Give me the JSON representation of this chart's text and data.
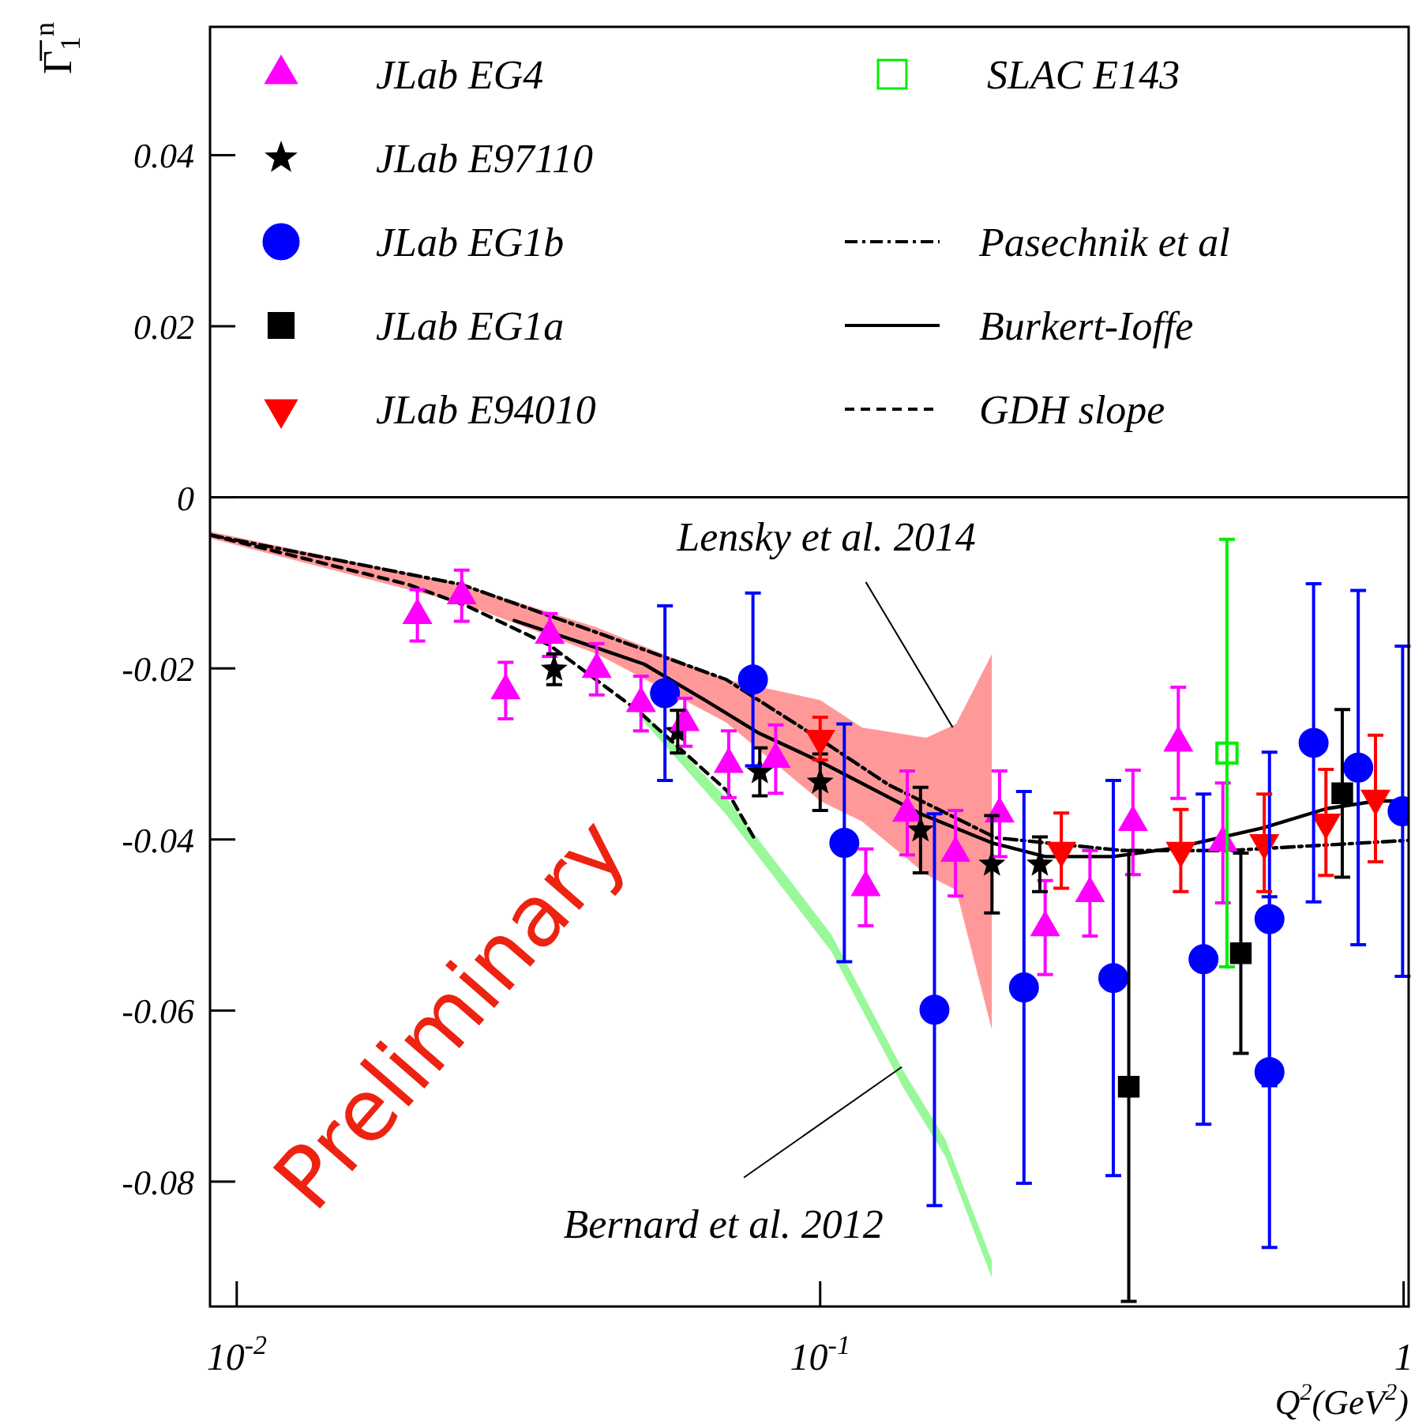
{
  "chart_data": {
    "type": "scatter",
    "xlabel": "Q$^{2}$(GeV$^{2}$)",
    "ylabel": "Γ̅$_{1}$$^{n}$",
    "log": "x",
    "legend": "top",
    "xlim": [
      0.009,
      1.02
    ],
    "ylim": [
      -0.0946,
      0.055
    ],
    "xticks": [
      {
        "value": 0.01,
        "label": "10$^{-2}$"
      },
      {
        "value": 0.1,
        "label": "10$^{-1}$"
      },
      1
    ],
    "yticks": [
      -0.08,
      -0.06,
      -0.04,
      -0.02,
      0,
      0.02,
      0.04
    ],
    "ref_lines": [
      {
        "axis": "y",
        "value": 0,
        "color": "#000000",
        "line_style": "solid"
      }
    ],
    "annotations": [
      {
        "text": "Lensky et al. 2014",
        "x": 0.1687,
        "y": -0.0269
      },
      {
        "text": "Bernard et al. 2012",
        "x": 0.138,
        "y": -0.0666
      },
      "Preliminary"
    ],
    "series": [
      {
        "name": "JLab EG4",
        "type": "scatter",
        "marker": "triangle",
        "color": "#ff00ff",
        "x": [
          0.0204,
          0.0243,
          0.0289,
          0.0344,
          0.0414,
          0.0493,
          0.0586,
          0.0697,
          0.0839,
          0.1197,
          0.141,
          0.1706,
          0.203,
          0.243,
          0.29,
          0.3436,
          0.411,
          0.49
        ],
        "values": [
          -0.0138,
          -0.0115,
          -0.0226,
          -0.0161,
          -0.0201,
          -0.0241,
          -0.0263,
          -0.0312,
          -0.0306,
          -0.0456,
          -0.0369,
          -0.0416,
          -0.037,
          -0.0503,
          -0.0463,
          -0.038,
          -0.0287,
          -0.0404
        ],
        "errors": [
          0.003,
          0.003,
          0.0033,
          0.0025,
          0.003,
          0.0032,
          0.0028,
          0.0039,
          0.004,
          0.0045,
          0.0049,
          0.005,
          0.005,
          0.0055,
          0.005,
          0.0061,
          0.0065,
          0.007
        ]
      },
      {
        "name": "JLab E97110",
        "type": "scatter",
        "marker": "star",
        "color": "#000000",
        "x": [
          0.035,
          0.057,
          0.0788,
          0.1,
          0.1486,
          0.197,
          0.238
        ],
        "values": [
          -0.0201,
          -0.0274,
          -0.0321,
          -0.0333,
          -0.0389,
          -0.0429,
          -0.0429
        ],
        "errors": [
          0.0018,
          0.0025,
          0.0028,
          0.0033,
          0.005,
          0.0057,
          0.0032
        ]
      },
      {
        "name": "JLab EG1b",
        "type": "scatter",
        "marker": "circle",
        "color": "#0000ff",
        "x": [
          0.0542,
          0.0767,
          0.11,
          0.157,
          0.2235,
          0.318,
          0.454,
          0.589,
          0.589,
          0.701,
          0.836,
          0.996
        ],
        "values": [
          -0.0229,
          -0.0213,
          -0.0404,
          -0.0599,
          -0.0573,
          -0.0562,
          -0.054,
          -0.0493,
          -0.0672,
          -0.0287,
          -0.0316,
          -0.0367
        ],
        "errors": [
          0.0102,
          0.0101,
          0.0139,
          0.0229,
          0.0229,
          0.0231,
          0.0193,
          0.0195,
          0.0205,
          0.0186,
          0.0207,
          0.0193
        ]
      },
      {
        "name": "JLab EG1a",
        "type": "scatter",
        "marker": "square",
        "color": "#000000",
        "x": [
          0.338,
          0.526,
          0.785
        ],
        "values": [
          -0.0689,
          -0.0533,
          -0.0346
        ],
        "errors": [
          [
            -0.094,
            -0.0413
          ],
          0.0117,
          0.0098
        ]
      },
      {
        "name": "JLab E94010",
        "type": "scatter",
        "marker": "triangle-down",
        "color": "#ff0000",
        "x": [
          0.1,
          0.259,
          0.415,
          0.577,
          0.736,
          0.895
        ],
        "values": [
          -0.0282,
          -0.0413,
          -0.0413,
          -0.0404,
          -0.038,
          -0.0352
        ],
        "errors": [
          0.0025,
          0.0044,
          0.0048,
          0.0057,
          0.0062,
          0.0074
        ]
      },
      {
        "name": "SLAC E143",
        "type": "scatter",
        "marker": "square-open",
        "color": "#00ee00",
        "x": [
          0.498
        ],
        "values": [
          -0.0299
        ],
        "errors": [
          0.025
        ]
      },
      {
        "name": "Pasechnik et al",
        "type": "line",
        "line_style": "dashdot",
        "color": "#000000",
        "x": [
          0.009,
          0.0243,
          0.0414,
          0.069,
          0.1,
          0.131,
          0.2,
          0.33,
          0.5,
          1.02
        ],
        "values": [
          -0.0044,
          -0.0102,
          -0.0158,
          -0.0213,
          -0.0283,
          -0.0336,
          -0.0398,
          -0.0413,
          -0.0413,
          -0.0401
        ]
      },
      {
        "name": "Burkert-Ioffe",
        "type": "line",
        "line_style": "solid",
        "color": "#000000",
        "x": [
          0.0299,
          0.0414,
          0.0499,
          0.0638,
          0.0782,
          0.1,
          0.1486,
          0.197,
          0.243,
          0.318,
          0.405,
          0.577,
          0.737,
          0.9,
          1.02
        ],
        "values": [
          -0.0144,
          -0.0176,
          -0.0195,
          -0.0238,
          -0.0275,
          -0.0309,
          -0.037,
          -0.0404,
          -0.042,
          -0.042,
          -0.041,
          -0.0386,
          -0.0364,
          -0.0355,
          -0.0355
        ]
      },
      {
        "name": "GDH slope",
        "type": "line",
        "line_style": "dashed",
        "color": "#000000",
        "x": [
          0.009,
          0.0197,
          0.0248,
          0.0344,
          0.0488,
          0.0692,
          0.077
        ],
        "values": [
          -0.0044,
          -0.0102,
          -0.0127,
          -0.0173,
          -0.025,
          -0.0343,
          -0.0398
        ]
      },
      {
        "type": "line",
        "color": "#ff0000",
        "x": [
          0.009,
          0.0243,
          0.0414,
          0.069,
          0.1,
          0.118,
          0.152,
          0.171,
          0.197
        ],
        "values": [
          null,
          null,
          null,
          null,
          null,
          null,
          null,
          null,
          null
        ],
        "lower": [
          -0.0048,
          -0.0124,
          -0.0183,
          -0.0263,
          -0.0355,
          -0.0379,
          -0.0441,
          -0.0459,
          -0.0623
        ],
        "upper": [
          -0.004,
          -0.0102,
          -0.0152,
          -0.0213,
          -0.0237,
          -0.0269,
          -0.0281,
          -0.0265,
          -0.0183
        ]
      },
      {
        "type": "line",
        "color": "#00ee00",
        "x": [
          0.0488,
          0.069,
          0.1045,
          0.139,
          0.164,
          0.197
        ],
        "values": [
          null,
          null,
          null,
          null,
          null,
          null
        ],
        "lower": [
          -0.0255,
          -0.0371,
          -0.0531,
          -0.0691,
          -0.0771,
          -0.0913
        ],
        "upper": [
          -0.0245,
          -0.0351,
          -0.0511,
          -0.0671,
          -0.0751,
          -0.0893
        ]
      }
    ]
  }
}
